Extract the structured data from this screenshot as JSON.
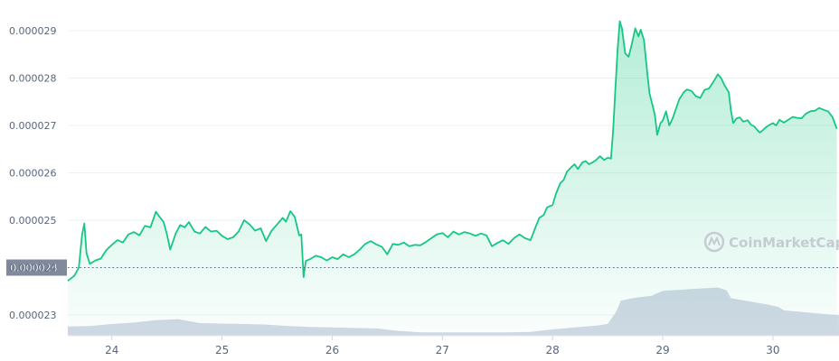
{
  "chart_data": {
    "type": "area",
    "y_ticks": [
      "0.000023",
      "0.000024",
      "0.000025",
      "0.000026",
      "0.000027",
      "0.000028",
      "0.000029"
    ],
    "x_ticks": [
      "24",
      "25",
      "26",
      "27",
      "28",
      "29",
      "30"
    ],
    "ylim": [
      2.26e-05,
      2.95e-05
    ],
    "xlim": [
      23.6,
      30.6
    ],
    "grid": true,
    "current_price_label": "0.000024",
    "current_price": 2.4e-05,
    "watermark": "CoinMarketCap",
    "colors": {
      "line": "#16c784",
      "fill_top": "#16c784",
      "volume": "#cfd6e4",
      "grid": "#eff2f5",
      "axis_text": "#58667e",
      "label_bg": "#808a9d"
    },
    "price_series": [
      [
        23.6,
        2.372e-05
      ],
      [
        23.66,
        2.383e-05
      ],
      [
        23.7,
        2.4e-05
      ],
      [
        23.73,
        2.47e-05
      ],
      [
        23.75,
        2.493e-05
      ],
      [
        23.77,
        2.43e-05
      ],
      [
        23.8,
        2.408e-05
      ],
      [
        23.85,
        2.415e-05
      ],
      [
        23.9,
        2.419e-05
      ],
      [
        23.95,
        2.437e-05
      ],
      [
        24.0,
        2.448e-05
      ],
      [
        24.05,
        2.458e-05
      ],
      [
        24.1,
        2.453e-05
      ],
      [
        24.15,
        2.47e-05
      ],
      [
        24.2,
        2.475e-05
      ],
      [
        24.25,
        2.468e-05
      ],
      [
        24.3,
        2.488e-05
      ],
      [
        24.35,
        2.485e-05
      ],
      [
        24.4,
        2.518e-05
      ],
      [
        24.43,
        2.508e-05
      ],
      [
        24.47,
        2.496e-05
      ],
      [
        24.5,
        2.47e-05
      ],
      [
        24.53,
        2.438e-05
      ],
      [
        24.58,
        2.472e-05
      ],
      [
        24.62,
        2.49e-05
      ],
      [
        24.66,
        2.485e-05
      ],
      [
        24.7,
        2.496e-05
      ],
      [
        24.75,
        2.476e-05
      ],
      [
        24.8,
        2.472e-05
      ],
      [
        24.85,
        2.486e-05
      ],
      [
        24.9,
        2.476e-05
      ],
      [
        24.95,
        2.478e-05
      ],
      [
        25.0,
        2.467e-05
      ],
      [
        25.05,
        2.46e-05
      ],
      [
        25.1,
        2.464e-05
      ],
      [
        25.15,
        2.476e-05
      ],
      [
        25.2,
        2.5e-05
      ],
      [
        25.25,
        2.491e-05
      ],
      [
        25.3,
        2.478e-05
      ],
      [
        25.35,
        2.483e-05
      ],
      [
        25.4,
        2.456e-05
      ],
      [
        25.45,
        2.478e-05
      ],
      [
        25.5,
        2.491e-05
      ],
      [
        25.55,
        2.505e-05
      ],
      [
        25.58,
        2.497e-05
      ],
      [
        25.62,
        2.519e-05
      ],
      [
        25.66,
        2.507e-05
      ],
      [
        25.7,
        2.468e-05
      ],
      [
        25.72,
        2.47e-05
      ],
      [
        25.74,
        2.38e-05
      ],
      [
        25.76,
        2.414e-05
      ],
      [
        25.8,
        2.418e-05
      ],
      [
        25.85,
        2.425e-05
      ],
      [
        25.9,
        2.422e-05
      ],
      [
        25.95,
        2.415e-05
      ],
      [
        26.0,
        2.422e-05
      ],
      [
        26.05,
        2.418e-05
      ],
      [
        26.1,
        2.428e-05
      ],
      [
        26.15,
        2.422e-05
      ],
      [
        26.2,
        2.428e-05
      ],
      [
        26.25,
        2.438e-05
      ],
      [
        26.3,
        2.45e-05
      ],
      [
        26.35,
        2.456e-05
      ],
      [
        26.4,
        2.449e-05
      ],
      [
        26.45,
        2.444e-05
      ],
      [
        26.5,
        2.428e-05
      ],
      [
        26.55,
        2.45e-05
      ],
      [
        26.6,
        2.448e-05
      ],
      [
        26.65,
        2.453e-05
      ],
      [
        26.7,
        2.445e-05
      ],
      [
        26.75,
        2.448e-05
      ],
      [
        26.8,
        2.447e-05
      ],
      [
        26.85,
        2.454e-05
      ],
      [
        26.9,
        2.462e-05
      ],
      [
        26.95,
        2.47e-05
      ],
      [
        27.0,
        2.473e-05
      ],
      [
        27.05,
        2.464e-05
      ],
      [
        27.1,
        2.476e-05
      ],
      [
        27.15,
        2.47e-05
      ],
      [
        27.2,
        2.475e-05
      ],
      [
        27.25,
        2.472e-05
      ],
      [
        27.3,
        2.467e-05
      ],
      [
        27.35,
        2.472e-05
      ],
      [
        27.4,
        2.468e-05
      ],
      [
        27.45,
        2.445e-05
      ],
      [
        27.5,
        2.452e-05
      ],
      [
        27.55,
        2.458e-05
      ],
      [
        27.6,
        2.45e-05
      ],
      [
        27.65,
        2.462e-05
      ],
      [
        27.7,
        2.47e-05
      ],
      [
        27.75,
        2.462e-05
      ],
      [
        27.8,
        2.458e-05
      ],
      [
        27.85,
        2.488e-05
      ],
      [
        27.88,
        2.505e-05
      ],
      [
        27.92,
        2.511e-05
      ],
      [
        27.95,
        2.527e-05
      ],
      [
        28.0,
        2.532e-05
      ],
      [
        28.03,
        2.555e-05
      ],
      [
        28.07,
        2.578e-05
      ],
      [
        28.1,
        2.585e-05
      ],
      [
        28.13,
        2.602e-05
      ],
      [
        28.17,
        2.612e-05
      ],
      [
        28.2,
        2.618e-05
      ],
      [
        28.23,
        2.608e-05
      ],
      [
        28.27,
        2.622e-05
      ],
      [
        28.3,
        2.625e-05
      ],
      [
        28.33,
        2.618e-05
      ],
      [
        28.37,
        2.623e-05
      ],
      [
        28.4,
        2.628e-05
      ],
      [
        28.43,
        2.635e-05
      ],
      [
        28.47,
        2.627e-05
      ],
      [
        28.5,
        2.632e-05
      ],
      [
        28.53,
        2.63e-05
      ],
      [
        28.55,
        2.69e-05
      ],
      [
        28.57,
        2.775e-05
      ],
      [
        28.59,
        2.86e-05
      ],
      [
        28.61,
        2.92e-05
      ],
      [
        28.63,
        2.905e-05
      ],
      [
        28.66,
        2.852e-05
      ],
      [
        28.69,
        2.845e-05
      ],
      [
        28.72,
        2.872e-05
      ],
      [
        28.75,
        2.905e-05
      ],
      [
        28.78,
        2.888e-05
      ],
      [
        28.8,
        2.902e-05
      ],
      [
        28.83,
        2.88e-05
      ],
      [
        28.86,
        2.81e-05
      ],
      [
        28.88,
        2.768e-05
      ],
      [
        28.91,
        2.74e-05
      ],
      [
        28.93,
        2.72e-05
      ],
      [
        28.95,
        2.68e-05
      ],
      [
        28.98,
        2.705e-05
      ],
      [
        29.0,
        2.71e-05
      ],
      [
        29.03,
        2.73e-05
      ],
      [
        29.06,
        2.7e-05
      ],
      [
        29.09,
        2.715e-05
      ],
      [
        29.12,
        2.735e-05
      ],
      [
        29.15,
        2.755e-05
      ],
      [
        29.19,
        2.77e-05
      ],
      [
        29.22,
        2.776e-05
      ],
      [
        29.26,
        2.773e-05
      ],
      [
        29.3,
        2.762e-05
      ],
      [
        29.34,
        2.758e-05
      ],
      [
        29.38,
        2.775e-05
      ],
      [
        29.42,
        2.778e-05
      ],
      [
        29.46,
        2.792e-05
      ],
      [
        29.5,
        2.808e-05
      ],
      [
        29.53,
        2.8e-05
      ],
      [
        29.56,
        2.785e-05
      ],
      [
        29.6,
        2.77e-05
      ],
      [
        29.62,
        2.73e-05
      ],
      [
        29.64,
        2.705e-05
      ],
      [
        29.67,
        2.715e-05
      ],
      [
        29.7,
        2.717e-05
      ],
      [
        29.73,
        2.708e-05
      ],
      [
        29.77,
        2.711e-05
      ],
      [
        29.8,
        2.702e-05
      ],
      [
        29.83,
        2.698e-05
      ],
      [
        29.86,
        2.69e-05
      ],
      [
        29.88,
        2.685e-05
      ],
      [
        29.9,
        2.688e-05
      ],
      [
        29.93,
        2.695e-05
      ],
      [
        29.96,
        2.7e-05
      ],
      [
        30.0,
        2.705e-05
      ],
      [
        30.03,
        2.7e-05
      ],
      [
        30.06,
        2.712e-05
      ],
      [
        30.1,
        2.706e-05
      ],
      [
        30.14,
        2.712e-05
      ],
      [
        30.18,
        2.718e-05
      ],
      [
        30.22,
        2.716e-05
      ],
      [
        30.26,
        2.715e-05
      ],
      [
        30.3,
        2.725e-05
      ],
      [
        30.34,
        2.73e-05
      ],
      [
        30.38,
        2.731e-05
      ],
      [
        30.42,
        2.737e-05
      ],
      [
        30.46,
        2.733e-05
      ],
      [
        30.5,
        2.73e-05
      ],
      [
        30.54,
        2.718e-05
      ],
      [
        30.58,
        2.693e-05
      ]
    ],
    "volume_series": [
      [
        23.6,
        0.19
      ],
      [
        23.8,
        0.2
      ],
      [
        24.0,
        0.24
      ],
      [
        24.2,
        0.27
      ],
      [
        24.4,
        0.32
      ],
      [
        24.6,
        0.34
      ],
      [
        24.8,
        0.26
      ],
      [
        25.0,
        0.25
      ],
      [
        25.2,
        0.24
      ],
      [
        25.4,
        0.23
      ],
      [
        25.6,
        0.2
      ],
      [
        25.8,
        0.18
      ],
      [
        26.0,
        0.17
      ],
      [
        26.2,
        0.16
      ],
      [
        26.4,
        0.15
      ],
      [
        26.6,
        0.1
      ],
      [
        26.8,
        0.07
      ],
      [
        27.0,
        0.07
      ],
      [
        27.2,
        0.07
      ],
      [
        27.4,
        0.07
      ],
      [
        27.6,
        0.07
      ],
      [
        27.8,
        0.08
      ],
      [
        28.0,
        0.13
      ],
      [
        28.2,
        0.17
      ],
      [
        28.4,
        0.21
      ],
      [
        28.5,
        0.24
      ],
      [
        28.58,
        0.5
      ],
      [
        28.62,
        0.72
      ],
      [
        28.75,
        0.78
      ],
      [
        28.9,
        0.82
      ],
      [
        29.0,
        0.92
      ],
      [
        29.2,
        0.95
      ],
      [
        29.35,
        0.97
      ],
      [
        29.5,
        0.99
      ],
      [
        29.58,
        0.93
      ],
      [
        29.62,
        0.77
      ],
      [
        29.8,
        0.7
      ],
      [
        29.95,
        0.64
      ],
      [
        30.05,
        0.59
      ],
      [
        30.1,
        0.52
      ],
      [
        30.25,
        0.49
      ],
      [
        30.45,
        0.45
      ],
      [
        30.6,
        0.42
      ]
    ]
  }
}
